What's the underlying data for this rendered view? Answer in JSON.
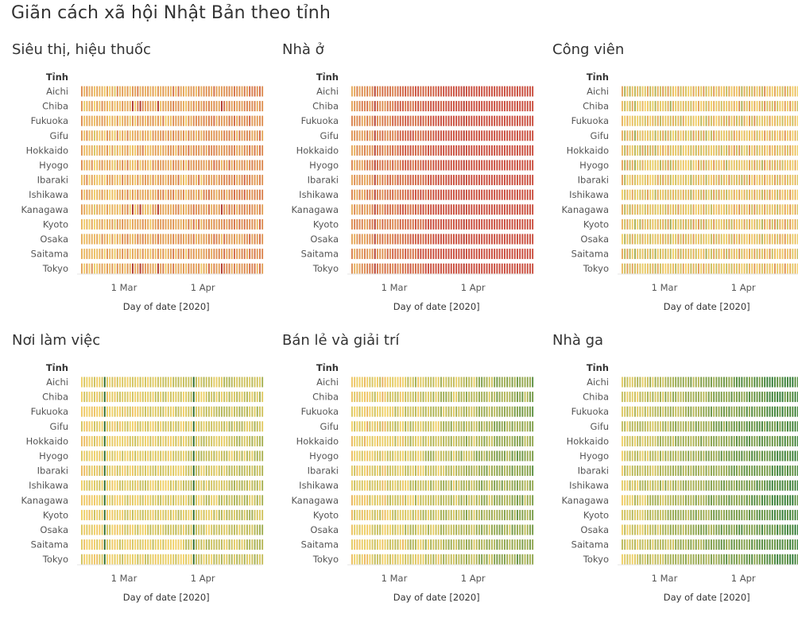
{
  "title": "Giãn cách xã hội Nhật Bản theo tỉnh",
  "chart_data": [
    {
      "type": "heatmap",
      "title": "Siêu thị, hiệu thuốc",
      "row_header": "Tỉnh",
      "rows": [
        "Aichi",
        "Chiba",
        "Fukuoka",
        "Gifu",
        "Hokkaido",
        "Hyogo",
        "Ibaraki",
        "Ishikawa",
        "Kanagawa",
        "Kyoto",
        "Osaka",
        "Saitama",
        "Tokyo"
      ],
      "xlabel": "Day of date [2020]",
      "x_ticks": [
        {
          "label": "1 Mar",
          "day": 15
        },
        {
          "label": "1 Apr",
          "day": 46
        }
      ],
      "x_range": [
        "2020-02-15",
        "2020-04-26"
      ],
      "base": [
        0.32,
        0.44
      ],
      "trend": 0.18,
      "dark_days": [
        20,
        23,
        30,
        55
      ],
      "alt_weekend": true
    },
    {
      "type": "heatmap",
      "title": "Nhà ở",
      "row_header": "Tỉnh",
      "rows": [
        "Aichi",
        "Chiba",
        "Fukuoka",
        "Gifu",
        "Hokkaido",
        "Hyogo",
        "Ibaraki",
        "Ishikawa",
        "Kanagawa",
        "Kyoto",
        "Osaka",
        "Saitama",
        "Tokyo"
      ],
      "xlabel": "Day of date [2020]",
      "x_ticks": [
        {
          "label": "1 Mar",
          "day": 15
        },
        {
          "label": "1 Apr",
          "day": 46
        }
      ],
      "x_range": [
        "2020-02-15",
        "2020-04-26"
      ],
      "base": [
        0.28,
        0.3
      ],
      "trend": 0.62,
      "dark_days": [
        9,
        44
      ],
      "alt_weekend": false
    },
    {
      "type": "heatmap",
      "title": "Công viên",
      "row_header": "Tỉnh",
      "rows": [
        "Aichi",
        "Chiba",
        "Fukuoka",
        "Gifu",
        "Hokkaido",
        "Hyogo",
        "Ibaraki",
        "Ishikawa",
        "Kanagawa",
        "Kyoto",
        "Osaka",
        "Saitama",
        "Tokyo"
      ],
      "xlabel": "Day of date [2020]",
      "x_ticks": [
        {
          "label": "1 Mar",
          "day": 15
        },
        {
          "label": "1 Apr",
          "day": 46
        }
      ],
      "x_range": [
        "2020-02-15",
        "2020-04-26"
      ],
      "base": [
        0.4,
        0.6
      ],
      "trend": 0.1,
      "dark_days": [],
      "alt_weekend": true
    },
    {
      "type": "heatmap",
      "title": "Nơi làm việc",
      "row_header": "Tỉnh",
      "rows": [
        "Aichi",
        "Chiba",
        "Fukuoka",
        "Gifu",
        "Hokkaido",
        "Hyogo",
        "Ibaraki",
        "Ishikawa",
        "Kanagawa",
        "Kyoto",
        "Osaka",
        "Saitama",
        "Tokyo"
      ],
      "xlabel": "Day of date [2020]",
      "x_ticks": [
        {
          "label": "1 Mar",
          "day": 15
        },
        {
          "label": "1 Apr",
          "day": 46
        }
      ],
      "x_range": [
        "2020-02-15",
        "2020-04-26"
      ],
      "base": [
        0.5,
        0.5
      ],
      "trend": -0.12,
      "dark_days": [
        9,
        44
      ],
      "alt_weekend": false
    },
    {
      "type": "heatmap",
      "title": "Bán lẻ và giải trí",
      "row_header": "Tỉnh",
      "rows": [
        "Aichi",
        "Chiba",
        "Fukuoka",
        "Gifu",
        "Hokkaido",
        "Hyogo",
        "Ibaraki",
        "Ishikawa",
        "Kanagawa",
        "Kyoto",
        "Osaka",
        "Saitama",
        "Tokyo"
      ],
      "xlabel": "Day of date [2020]",
      "x_ticks": [
        {
          "label": "1 Mar",
          "day": 15
        },
        {
          "label": "1 Apr",
          "day": 46
        }
      ],
      "x_range": [
        "2020-02-15",
        "2020-04-26"
      ],
      "base": [
        0.48,
        0.52
      ],
      "trend": -0.3,
      "dark_days": [],
      "alt_weekend": true
    },
    {
      "type": "heatmap",
      "title": "Nhà ga",
      "row_header": "Tỉnh",
      "rows": [
        "Aichi",
        "Chiba",
        "Fukuoka",
        "Gifu",
        "Hokkaido",
        "Hyogo",
        "Ibaraki",
        "Ishikawa",
        "Kanagawa",
        "Kyoto",
        "Osaka",
        "Saitama",
        "Tokyo"
      ],
      "xlabel": "Day of date [2020]",
      "x_ticks": [
        {
          "label": "1 Mar",
          "day": 15
        },
        {
          "label": "1 Apr",
          "day": 46
        }
      ],
      "x_range": [
        "2020-02-15",
        "2020-04-26"
      ],
      "base": [
        0.55,
        0.58
      ],
      "trend": -0.4,
      "dark_days": [],
      "alt_weekend": false
    }
  ],
  "colors": {
    "low": "#c94c3c",
    "mid": "#f2d268",
    "high": "#2e7a33"
  }
}
